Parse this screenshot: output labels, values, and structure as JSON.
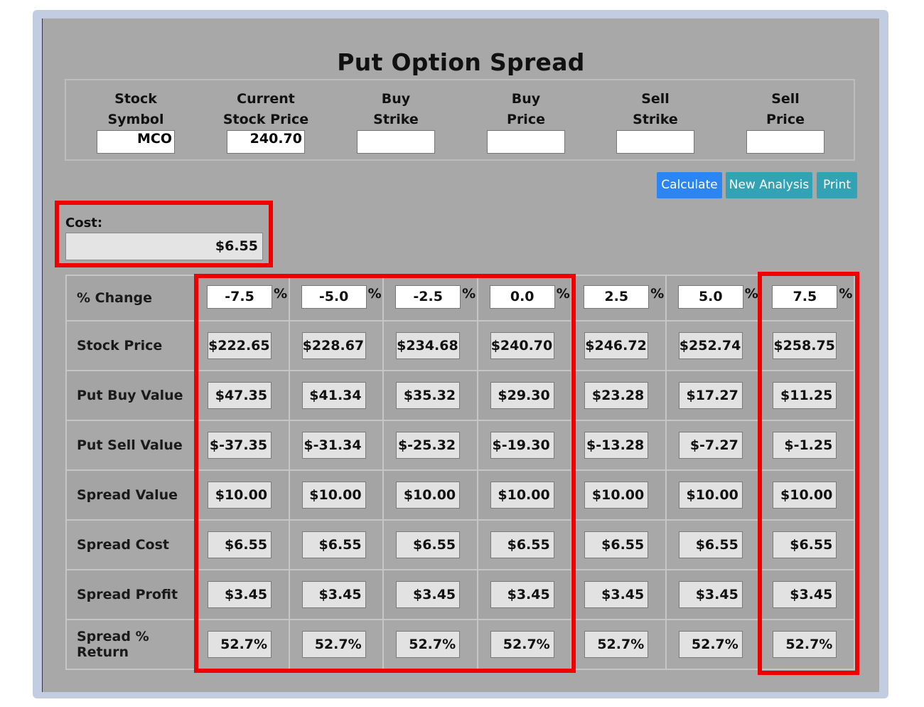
{
  "title": "Put Option Spread",
  "inputs": [
    {
      "line1": "Stock",
      "line2": "Symbol",
      "value": ""
    },
    {
      "line1": "Current",
      "line2": "Stock Price",
      "value": "240.70"
    },
    {
      "line1": "Buy",
      "line2": "Strike",
      "value": ""
    },
    {
      "line1": "Buy",
      "line2": "Price",
      "value": ""
    },
    {
      "line1": "Sell",
      "line2": "Strike",
      "value": ""
    },
    {
      "line1": "Sell",
      "line2": "Price",
      "value": ""
    }
  ],
  "symbol_value": "MCO",
  "buttons": {
    "calculate": "Calculate",
    "new_analysis": "New Analysis",
    "print": "Print"
  },
  "cost": {
    "label": "Cost:",
    "value": "$6.55"
  },
  "percent_sign": "%",
  "rows": {
    "pct_change": {
      "label": "% Change",
      "values": [
        "-7.5",
        "-5.0",
        "-2.5",
        "0.0",
        "2.5",
        "5.0",
        "7.5"
      ]
    },
    "stock_price": {
      "label": "Stock Price",
      "values": [
        "$222.65",
        "$228.67",
        "$234.68",
        "$240.70",
        "$246.72",
        "$252.74",
        "$258.75"
      ]
    },
    "put_buy_value": {
      "label": "Put Buy Value",
      "values": [
        "$47.35",
        "$41.34",
        "$35.32",
        "$29.30",
        "$23.28",
        "$17.27",
        "$11.25"
      ]
    },
    "put_sell_value": {
      "label": "Put Sell Value",
      "values": [
        "$-37.35",
        "$-31.34",
        "$-25.32",
        "$-19.30",
        "$-13.28",
        "$-7.27",
        "$-1.25"
      ]
    },
    "spread_value": {
      "label": "Spread Value",
      "values": [
        "$10.00",
        "$10.00",
        "$10.00",
        "$10.00",
        "$10.00",
        "$10.00",
        "$10.00"
      ]
    },
    "spread_cost": {
      "label": "Spread Cost",
      "values": [
        "$6.55",
        "$6.55",
        "$6.55",
        "$6.55",
        "$6.55",
        "$6.55",
        "$6.55"
      ]
    },
    "spread_profit": {
      "label": "Spread Profit",
      "values": [
        "$3.45",
        "$3.45",
        "$3.45",
        "$3.45",
        "$3.45",
        "$3.45",
        "$3.45"
      ]
    },
    "spread_return": {
      "label": "Spread % Return",
      "values": [
        "52.7%",
        "52.7%",
        "52.7%",
        "52.7%",
        "52.7%",
        "52.7%",
        "52.7%"
      ]
    }
  },
  "colors": {
    "highlight": "#ee0000",
    "calculate_button": "#2b86f3",
    "secondary_button": "#31a3b5",
    "panel": "#a8a8a8"
  }
}
